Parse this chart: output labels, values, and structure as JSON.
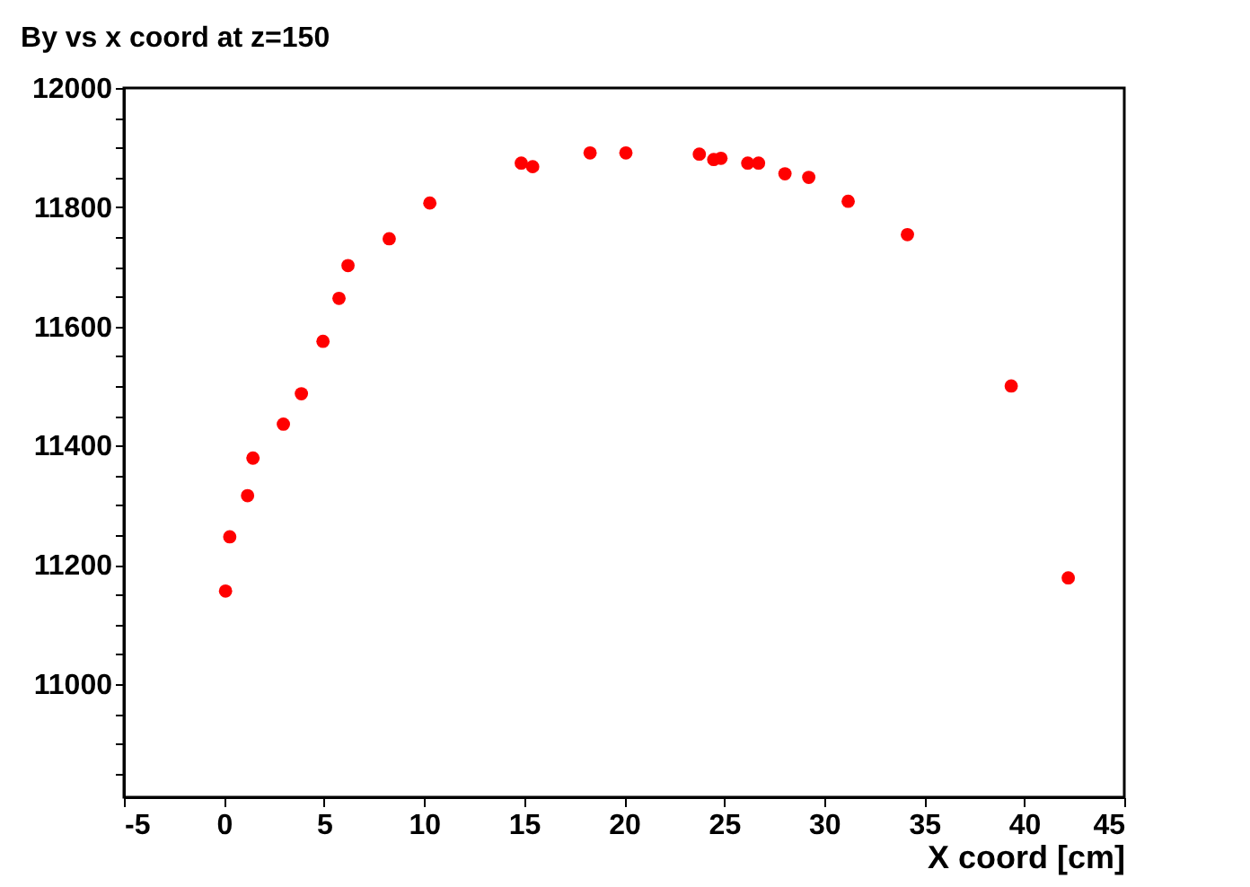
{
  "chart_data": {
    "type": "scatter",
    "title": "By vs x coord at z=150",
    "xlabel": "X coord [cm]",
    "x": [
      0.08,
      0.29,
      1.18,
      1.45,
      2.97,
      3.87,
      4.95,
      5.75,
      6.2,
      8.26,
      10.29,
      14.86,
      15.43,
      18.3,
      20.09,
      23.76,
      24.48,
      24.84,
      26.18,
      26.72,
      28.04,
      29.23,
      31.2,
      34.16,
      39.35,
      42.2
    ],
    "series": [
      {
        "color": "#ff0000",
        "values": [
          11156,
          11247,
          11316,
          11379,
          11436,
          11487,
          11575,
          11647,
          11702,
          11747,
          11807,
          11874,
          11868,
          11891,
          11891,
          11889,
          11880,
          11882,
          11874,
          11874,
          11856,
          11850,
          11810,
          11754,
          11500,
          11178
        ]
      }
    ],
    "xlim": [
      -5,
      45
    ],
    "xticks": [
      -5,
      0,
      5,
      10,
      15,
      20,
      25,
      30,
      35,
      40,
      45
    ],
    "ylim": [
      10810,
      12000
    ],
    "yticks": [
      {
        "value": 10850,
        "label": null
      },
      {
        "value": 10900,
        "label": null
      },
      {
        "value": 10950,
        "label": null
      },
      11000,
      {
        "value": 11050,
        "label": null
      },
      {
        "value": 11100,
        "label": null
      },
      {
        "value": 11150,
        "label": null
      },
      11200,
      {
        "value": 11250,
        "label": null
      },
      {
        "value": 11300,
        "label": null
      },
      {
        "value": 11350,
        "label": null
      },
      11400,
      {
        "value": 11450,
        "label": null
      },
      {
        "value": 11500,
        "label": null
      },
      {
        "value": 11550,
        "label": null
      },
      11600,
      {
        "value": 11650,
        "label": null
      },
      {
        "value": 11700,
        "label": null
      },
      {
        "value": 11750,
        "label": null
      },
      11800,
      {
        "value": 11850,
        "label": null
      },
      {
        "value": 11900,
        "label": null
      },
      {
        "value": 11950,
        "label": null
      },
      12000
    ],
    "grid": false,
    "legend": false,
    "marker": "circle"
  }
}
